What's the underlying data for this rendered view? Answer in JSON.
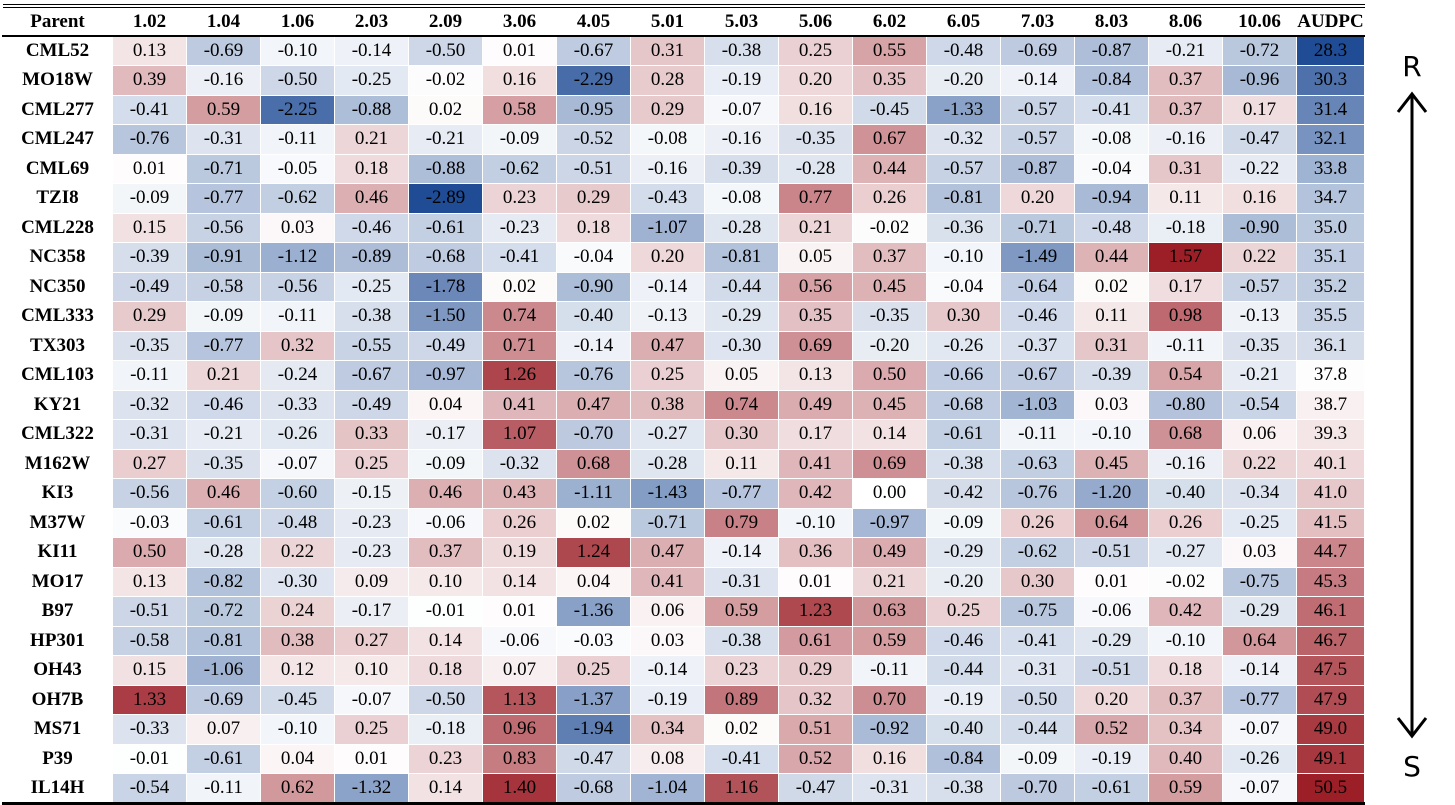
{
  "chart_data": {
    "type": "heatmap",
    "header_label": "Parent",
    "columns": [
      "1.02",
      "1.04",
      "1.06",
      "2.03",
      "2.09",
      "3.06",
      "4.05",
      "5.01",
      "5.03",
      "5.06",
      "6.02",
      "6.05",
      "7.03",
      "8.03",
      "8.06",
      "10.06"
    ],
    "summary_column": "AUDPC",
    "rows": [
      {
        "name": "CML52",
        "values": [
          0.13,
          -0.69,
          -0.1,
          -0.14,
          -0.5,
          0.01,
          -0.67,
          0.31,
          -0.38,
          0.25,
          0.55,
          -0.48,
          -0.69,
          -0.87,
          -0.21,
          -0.72
        ],
        "audpc": 28.3
      },
      {
        "name": "MO18W",
        "values": [
          0.39,
          -0.16,
          -0.5,
          -0.25,
          -0.02,
          0.16,
          -2.29,
          0.28,
          -0.19,
          0.2,
          0.35,
          -0.2,
          -0.14,
          -0.84,
          0.37,
          -0.96
        ],
        "audpc": 30.3
      },
      {
        "name": "CML277",
        "values": [
          -0.41,
          0.59,
          -2.25,
          -0.88,
          0.02,
          0.58,
          -0.95,
          0.29,
          -0.07,
          0.16,
          -0.45,
          -1.33,
          -0.57,
          -0.41,
          0.37,
          0.17
        ],
        "audpc": 31.4
      },
      {
        "name": "CML247",
        "values": [
          -0.76,
          -0.31,
          -0.11,
          0.21,
          -0.21,
          -0.09,
          -0.52,
          -0.08,
          -0.16,
          -0.35,
          0.67,
          -0.32,
          -0.57,
          -0.08,
          -0.16,
          -0.47
        ],
        "audpc": 32.1
      },
      {
        "name": "CML69",
        "values": [
          0.01,
          -0.71,
          -0.05,
          0.18,
          -0.88,
          -0.62,
          -0.51,
          -0.16,
          -0.39,
          -0.28,
          0.44,
          -0.57,
          -0.87,
          -0.04,
          0.31,
          -0.22
        ],
        "audpc": 33.8
      },
      {
        "name": "TZI8",
        "values": [
          -0.09,
          -0.77,
          -0.62,
          0.46,
          -2.89,
          0.23,
          0.29,
          -0.43,
          -0.08,
          0.77,
          0.26,
          -0.81,
          0.2,
          -0.94,
          0.11,
          0.16
        ],
        "audpc": 34.7
      },
      {
        "name": "CML228",
        "values": [
          0.15,
          -0.56,
          0.03,
          -0.46,
          -0.61,
          -0.23,
          0.18,
          -1.07,
          -0.28,
          0.21,
          -0.02,
          -0.36,
          -0.71,
          -0.48,
          -0.18,
          -0.9
        ],
        "audpc": 35.0
      },
      {
        "name": "NC358",
        "values": [
          -0.39,
          -0.91,
          -1.12,
          -0.89,
          -0.68,
          -0.41,
          -0.04,
          0.2,
          -0.81,
          0.05,
          0.37,
          -0.1,
          -1.49,
          0.44,
          1.57,
          0.22
        ],
        "audpc": 35.1
      },
      {
        "name": "NC350",
        "values": [
          -0.49,
          -0.58,
          -0.56,
          -0.25,
          -1.78,
          0.02,
          -0.9,
          -0.14,
          -0.44,
          0.56,
          0.45,
          -0.04,
          -0.64,
          0.02,
          0.17,
          -0.57
        ],
        "audpc": 35.2
      },
      {
        "name": "CML333",
        "values": [
          0.29,
          -0.09,
          -0.11,
          -0.38,
          -1.5,
          0.74,
          -0.4,
          -0.13,
          -0.29,
          0.35,
          -0.35,
          0.3,
          -0.46,
          0.11,
          0.98,
          -0.13
        ],
        "audpc": 35.5
      },
      {
        "name": "TX303",
        "values": [
          -0.35,
          -0.77,
          0.32,
          -0.55,
          -0.49,
          0.71,
          -0.14,
          0.47,
          -0.3,
          0.69,
          -0.2,
          -0.26,
          -0.37,
          0.31,
          -0.11,
          -0.35
        ],
        "audpc": 36.1
      },
      {
        "name": "CML103",
        "values": [
          -0.11,
          0.21,
          -0.24,
          -0.67,
          -0.97,
          1.26,
          -0.76,
          0.25,
          0.05,
          0.13,
          0.5,
          -0.66,
          -0.67,
          -0.39,
          0.54,
          -0.21
        ],
        "audpc": 37.8
      },
      {
        "name": "KY21",
        "values": [
          -0.32,
          -0.46,
          -0.33,
          -0.49,
          0.04,
          0.41,
          0.47,
          0.38,
          0.74,
          0.49,
          0.45,
          -0.68,
          -1.03,
          0.03,
          -0.8,
          -0.54
        ],
        "audpc": 38.7
      },
      {
        "name": "CML322",
        "values": [
          -0.31,
          -0.21,
          -0.26,
          0.33,
          -0.17,
          1.07,
          -0.7,
          -0.27,
          0.3,
          0.17,
          0.14,
          -0.61,
          -0.11,
          -0.1,
          0.68,
          0.06
        ],
        "audpc": 39.3
      },
      {
        "name": "M162W",
        "values": [
          0.27,
          -0.35,
          -0.07,
          0.25,
          -0.09,
          -0.32,
          0.68,
          -0.28,
          0.11,
          0.41,
          0.69,
          -0.38,
          -0.63,
          0.45,
          -0.16,
          0.22
        ],
        "audpc": 40.1
      },
      {
        "name": "KI3",
        "values": [
          -0.56,
          0.46,
          -0.6,
          -0.15,
          0.46,
          0.43,
          -1.11,
          -1.43,
          -0.77,
          0.42,
          0.0,
          -0.42,
          -0.76,
          -1.2,
          -0.4,
          -0.34
        ],
        "audpc": 41.0
      },
      {
        "name": "M37W",
        "values": [
          -0.03,
          -0.61,
          -0.48,
          -0.23,
          -0.06,
          0.26,
          0.02,
          -0.71,
          0.79,
          -0.1,
          -0.97,
          -0.09,
          0.26,
          0.64,
          0.26,
          -0.25
        ],
        "audpc": 41.5
      },
      {
        "name": "KI11",
        "values": [
          0.5,
          -0.28,
          0.22,
          -0.23,
          0.37,
          0.19,
          1.24,
          0.47,
          -0.14,
          0.36,
          0.49,
          -0.29,
          -0.62,
          -0.51,
          -0.27,
          0.03
        ],
        "audpc": 44.7
      },
      {
        "name": "MO17",
        "values": [
          0.13,
          -0.82,
          -0.3,
          0.09,
          0.1,
          0.14,
          0.04,
          0.41,
          -0.31,
          0.01,
          0.21,
          -0.2,
          0.3,
          0.01,
          -0.02,
          -0.75
        ],
        "audpc": 45.3
      },
      {
        "name": "B97",
        "values": [
          -0.51,
          -0.72,
          0.24,
          -0.17,
          -0.01,
          0.01,
          -1.36,
          0.06,
          0.59,
          1.23,
          0.63,
          0.25,
          -0.75,
          -0.06,
          0.42,
          -0.29
        ],
        "audpc": 46.1
      },
      {
        "name": "HP301",
        "values": [
          -0.58,
          -0.81,
          0.38,
          0.27,
          0.14,
          -0.06,
          -0.03,
          0.03,
          -0.38,
          0.61,
          0.59,
          -0.46,
          -0.41,
          -0.29,
          -0.1,
          0.64
        ],
        "audpc": 46.7
      },
      {
        "name": "OH43",
        "values": [
          0.15,
          -1.06,
          0.12,
          0.1,
          0.18,
          0.07,
          0.25,
          -0.14,
          0.23,
          0.29,
          -0.11,
          -0.44,
          -0.31,
          -0.51,
          0.18,
          -0.14
        ],
        "audpc": 47.5
      },
      {
        "name": "OH7B",
        "values": [
          1.33,
          -0.69,
          -0.45,
          -0.07,
          -0.5,
          1.13,
          -1.37,
          -0.19,
          0.89,
          0.32,
          0.7,
          -0.19,
          -0.5,
          0.2,
          0.37,
          -0.77
        ],
        "audpc": 47.9
      },
      {
        "name": "MS71",
        "values": [
          -0.33,
          0.07,
          -0.1,
          0.25,
          -0.18,
          0.96,
          -1.94,
          0.34,
          0.02,
          0.51,
          -0.92,
          -0.4,
          -0.44,
          0.52,
          0.34,
          -0.07
        ],
        "audpc": 49.0
      },
      {
        "name": "P39",
        "values": [
          -0.01,
          -0.61,
          0.04,
          0.01,
          0.23,
          0.83,
          -0.47,
          0.08,
          -0.41,
          0.52,
          0.16,
          -0.84,
          -0.09,
          -0.19,
          0.4,
          -0.26
        ],
        "audpc": 49.1
      },
      {
        "name": "IL14H",
        "values": [
          -0.54,
          -0.11,
          0.62,
          -1.32,
          0.14,
          1.4,
          -0.68,
          -1.04,
          1.16,
          -0.47,
          -0.31,
          -0.38,
          -0.7,
          -0.61,
          0.59,
          -0.07
        ],
        "audpc": 50.5
      }
    ],
    "color_scale": {
      "negative": "#1f4c95",
      "neutral": "#ffffff",
      "positive": "#9c1f28",
      "value_range": [
        -2.89,
        1.57
      ],
      "audpc_range": [
        28.3,
        50.5
      ]
    },
    "arrow": {
      "top_label": "R",
      "bottom_label": "S"
    }
  }
}
